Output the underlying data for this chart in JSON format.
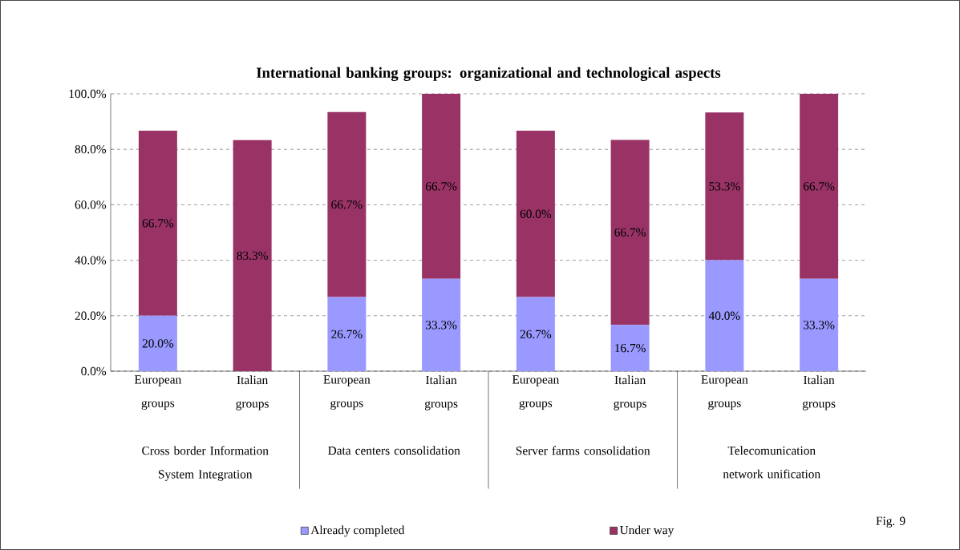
{
  "chart_data": {
    "type": "bar",
    "title": "International banking groups: organizational and technological aspects",
    "categories": [
      "European groups",
      "Italian groups",
      "European groups",
      "Italian groups",
      "European groups",
      "Italian groups",
      "European groups",
      "Italian groups"
    ],
    "series": [
      {
        "name": "Already completed",
        "color": "#9999ff",
        "values": [
          20.0,
          0,
          26.7,
          33.3,
          26.7,
          16.7,
          40.0,
          33.3
        ],
        "value_labels": [
          "20.0%",
          null,
          "26.7%",
          "33.3%",
          "26.7%",
          "16.7%",
          "40.0%",
          "33.3%"
        ]
      },
      {
        "name": "Under way",
        "color": "#993366",
        "values": [
          66.7,
          83.3,
          66.7,
          66.7,
          60.0,
          66.7,
          53.3,
          66.7
        ],
        "value_labels": [
          "66.7%",
          "83.3%",
          "66.7%",
          "66.7%",
          "60.0%",
          "66.7%",
          "53.3%",
          "66.7%"
        ]
      }
    ],
    "stacked": true,
    "ylim": [
      0,
      100
    ],
    "yticks": [
      {
        "value": 0,
        "label": "0.0%"
      },
      {
        "value": 20,
        "label": "20.0%"
      },
      {
        "value": 40,
        "label": "40.0%"
      },
      {
        "value": 60,
        "label": "60.0%"
      },
      {
        "value": 80,
        "label": "80.0%"
      },
      {
        "value": 100,
        "label": "100.0%"
      }
    ],
    "grid": "y",
    "legend": "bottom",
    "annotations": [
      "Cross border Information System Integration",
      "Data centers consolidation",
      "Server farms consolidation",
      "Telecomunication network unification",
      "Fig. 9"
    ]
  }
}
